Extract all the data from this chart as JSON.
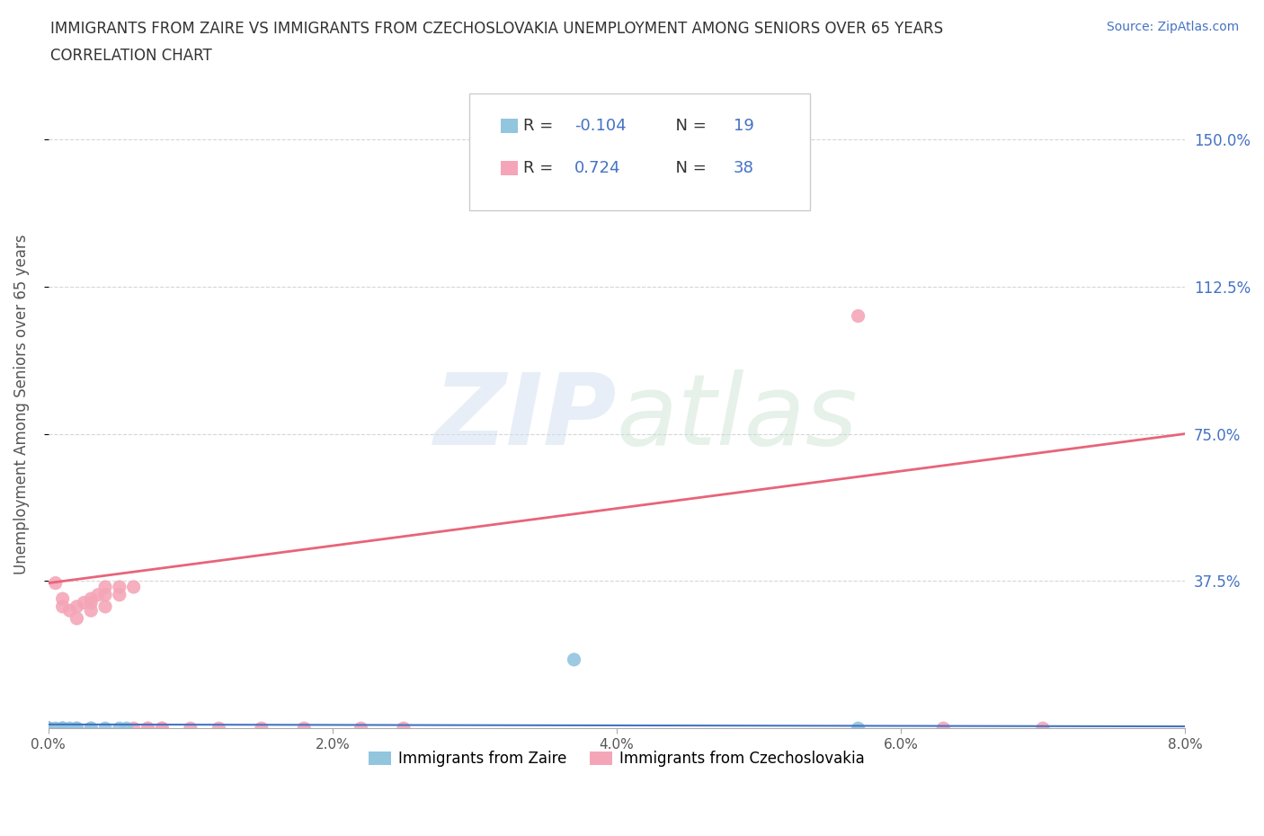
{
  "title_line1": "IMMIGRANTS FROM ZAIRE VS IMMIGRANTS FROM CZECHOSLOVAKIA UNEMPLOYMENT AMONG SENIORS OVER 65 YEARS",
  "title_line2": "CORRELATION CHART",
  "source": "Source: ZipAtlas.com",
  "ylabel": "Unemployment Among Seniors over 65 years",
  "xlim": [
    0.0,
    0.08
  ],
  "ylim": [
    0.0,
    1.65
  ],
  "xtick_labels": [
    "0.0%",
    "2.0%",
    "4.0%",
    "6.0%",
    "8.0%"
  ],
  "xtick_values": [
    0.0,
    0.02,
    0.04,
    0.06,
    0.08
  ],
  "ytick_labels": [
    "37.5%",
    "75.0%",
    "112.5%",
    "150.0%"
  ],
  "ytick_values": [
    0.375,
    0.75,
    1.125,
    1.5
  ],
  "zaire_color": "#92c5de",
  "czechoslovakia_color": "#f4a6b8",
  "zaire_line_color": "#4472c4",
  "czechoslovakia_line_color": "#e8647a",
  "zaire_R": -0.104,
  "zaire_N": 19,
  "czechoslovakia_R": 0.724,
  "czechoslovakia_N": 38,
  "watermark_zip": "ZIP",
  "watermark_atlas": "atlas",
  "background_color": "#ffffff",
  "grid_color": "#cccccc",
  "zaire_x": [
    0.0,
    0.0,
    0.0,
    0.0,
    0.0,
    0.0005,
    0.001,
    0.001,
    0.001,
    0.0015,
    0.002,
    0.002,
    0.003,
    0.003,
    0.004,
    0.005,
    0.0055,
    0.037,
    0.057
  ],
  "zaire_y": [
    0.0,
    0.0,
    0.0,
    0.0,
    0.0,
    0.0,
    0.0,
    0.0,
    0.0,
    0.0,
    0.0,
    0.0,
    0.0,
    0.0,
    0.0,
    0.0,
    0.0,
    0.175,
    0.0
  ],
  "czechoslovakia_x": [
    0.0,
    0.0,
    0.0,
    0.0,
    0.0,
    0.0,
    0.0005,
    0.001,
    0.001,
    0.001,
    0.0015,
    0.002,
    0.002,
    0.0025,
    0.003,
    0.003,
    0.003,
    0.0035,
    0.004,
    0.004,
    0.004,
    0.005,
    0.005,
    0.006,
    0.006,
    0.007,
    0.007,
    0.008,
    0.008,
    0.01,
    0.012,
    0.015,
    0.018,
    0.022,
    0.025,
    0.057,
    0.063,
    0.07
  ],
  "czechoslovakia_y": [
    0.0,
    0.0,
    0.0,
    0.0,
    0.0,
    0.0,
    0.37,
    0.33,
    0.0,
    0.31,
    0.3,
    0.28,
    0.31,
    0.32,
    0.3,
    0.32,
    0.33,
    0.34,
    0.31,
    0.34,
    0.36,
    0.34,
    0.36,
    0.36,
    0.0,
    0.0,
    0.0,
    0.0,
    0.0,
    0.0,
    0.0,
    0.0,
    0.0,
    0.0,
    0.0,
    1.05,
    0.0,
    0.0
  ],
  "czech_line_x0": 0.0,
  "czech_line_y0": 0.37,
  "czech_line_x1": 0.08,
  "czech_line_y1": 0.75,
  "zaire_line_x0": 0.0,
  "zaire_line_y0": 0.01,
  "zaire_line_x1": 0.08,
  "zaire_line_y1": 0.005
}
